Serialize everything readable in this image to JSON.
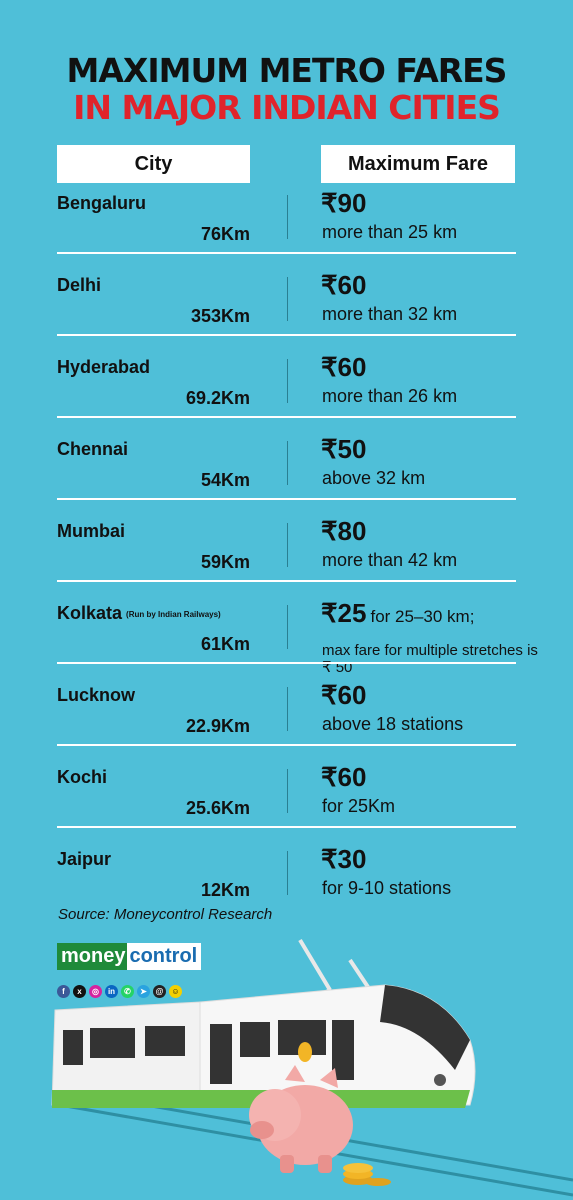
{
  "title": {
    "line1": "MAXIMUM METRO FARES",
    "line2": "IN MAJOR INDIAN CITIES"
  },
  "headers": {
    "city": "City",
    "fare": "Maximum Fare"
  },
  "rows": [
    {
      "city": "Bengaluru",
      "note": "",
      "length": "76Km",
      "fare": "₹90",
      "fare_inline": "",
      "desc": "more than 25 km"
    },
    {
      "city": "Delhi",
      "note": "",
      "length": "353Km",
      "fare": "₹60",
      "fare_inline": "",
      "desc": "more than 32 km"
    },
    {
      "city": "Hyderabad",
      "note": "",
      "length": "69.2Km",
      "fare": "₹60",
      "fare_inline": "",
      "desc": "more than 26 km"
    },
    {
      "city": "Chennai",
      "note": "",
      "length": "54Km",
      "fare": "₹50",
      "fare_inline": "",
      "desc": "above 32 km"
    },
    {
      "city": "Mumbai",
      "note": "",
      "length": "59Km",
      "fare": "₹80",
      "fare_inline": "",
      "desc": "more than 42 km"
    },
    {
      "city": "Kolkata",
      "note": "(Run by Indian Railways)",
      "length": "61Km",
      "fare": "₹25",
      "fare_inline": "for 25–30 km;",
      "desc": "max fare for multiple stretches is ₹ 50"
    },
    {
      "city": "Lucknow",
      "note": "",
      "length": "22.9Km",
      "fare": "₹60",
      "fare_inline": "",
      "desc": "above 18 stations"
    },
    {
      "city": "Kochi",
      "note": "",
      "length": "25.6Km",
      "fare": "₹60",
      "fare_inline": "",
      "desc": "for 25Km"
    },
    {
      "city": "Jaipur",
      "note": "",
      "length": "12Km",
      "fare": "₹30",
      "fare_inline": "",
      "desc": "for 9-10 stations"
    }
  ],
  "source": "Source: Moneycontrol Research",
  "brand": {
    "part1": "money",
    "part2": "control"
  },
  "social_icons": [
    "facebook-icon",
    "x-icon",
    "instagram-icon",
    "linkedin-icon",
    "whatsapp-icon",
    "telegram-icon",
    "threads-icon",
    "snapchat-icon"
  ],
  "colors": {
    "background": "#4fbfd8",
    "title_dark": "#111111",
    "title_red": "#e0242b",
    "brand_green": "#1f8a3a",
    "brand_blue": "#1a6cb0"
  }
}
